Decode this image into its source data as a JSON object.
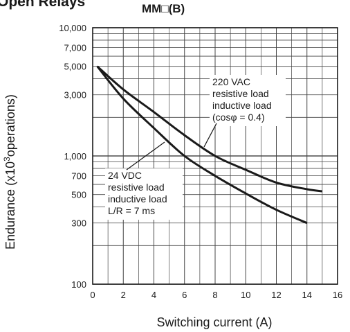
{
  "page_heading": "Open Relays",
  "chart_data": {
    "type": "line",
    "title": "MM□(B)",
    "xlabel": "Switching current (A)",
    "ylabel_main": "Endurance (x10",
    "ylabel_sup": "3",
    "ylabel_tail": "operations)",
    "y_scale": "log",
    "xlim": [
      0,
      16
    ],
    "ylim": [
      100,
      10000
    ],
    "grid": true,
    "x_ticks": [
      0,
      2,
      4,
      6,
      8,
      10,
      12,
      14,
      16
    ],
    "x_tick_labels": [
      "0",
      "2",
      "4",
      "6",
      "8",
      "10",
      "12",
      "14",
      "16"
    ],
    "y_ticks": [
      100,
      300,
      500,
      700,
      1000,
      3000,
      5000,
      7000,
      10000
    ],
    "y_tick_labels": [
      "100",
      "300",
      "500",
      "700",
      "1,000",
      "3,000",
      "5,000",
      "7,000",
      "10,000"
    ],
    "series": [
      {
        "x": [
          0.3,
          2,
          4,
          6,
          8,
          10,
          12,
          14,
          15
        ],
        "values": [
          5000,
          3300,
          2200,
          1450,
          1000,
          780,
          620,
          550,
          530
        ],
        "annotation": [
          "220 VAC",
          "resistive load",
          "inductive load",
          "(cosφ = 0.4)"
        ]
      },
      {
        "x": [
          0.3,
          2,
          4,
          6,
          8,
          10,
          12,
          14
        ],
        "values": [
          5000,
          2800,
          1650,
          1000,
          700,
          510,
          380,
          300
        ],
        "annotation": [
          "24 VDC",
          "resistive load",
          "inductive load",
          "L/R = 7 ms"
        ]
      }
    ]
  }
}
